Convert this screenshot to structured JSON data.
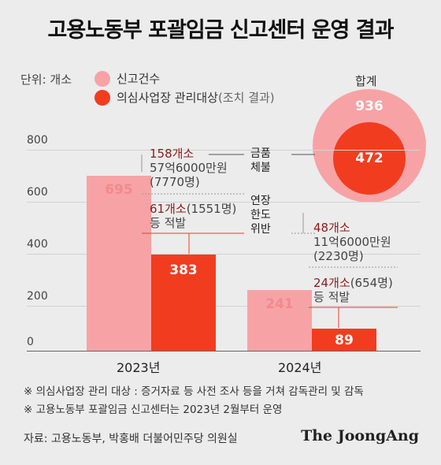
{
  "title": "고용노동부 포괄임금 신고센터 운영 결과",
  "unit": "단위: 개소",
  "legend": [
    {
      "label": "신고건수",
      "color": "#f7a3a6"
    },
    {
      "label": "의심사업장 관리대상",
      "suffix": "(조치 결과)",
      "color": "#f23c1f"
    }
  ],
  "totals": {
    "label": "합계",
    "reports": "936",
    "targets": "472"
  },
  "chart_data": {
    "type": "bar",
    "categories": [
      "2023년",
      "2024년"
    ],
    "series": [
      {
        "name": "신고건수",
        "values": [
          695,
          241
        ]
      },
      {
        "name": "의심사업장 관리대상",
        "values": [
          383,
          89
        ]
      }
    ],
    "ylim": [
      0,
      800
    ],
    "yticks": [
      "0",
      "200",
      "400",
      "600",
      "800"
    ],
    "colors": [
      "#f7a3a6",
      "#f23c1f"
    ]
  },
  "annotations": {
    "y2023": {
      "unpaid_count": "158개소",
      "unpaid_amount": "57억6000만원",
      "unpaid_people": "(7770명)",
      "overtime_count": "61개소",
      "overtime_people": "(1551명)",
      "overtime_action": "등 적발"
    },
    "y2024": {
      "unpaid_count": "48개소",
      "unpaid_amount": "11억6000만원",
      "unpaid_people": "(2230명)",
      "overtime_count": "24개소",
      "overtime_people": "(654명)",
      "overtime_action": "등 적발"
    },
    "side": {
      "unpaid_line1": "금품",
      "unpaid_line2": "체불",
      "overtime_line1": "연장",
      "overtime_line2": "한도",
      "overtime_line3": "위반"
    }
  },
  "notes": [
    "※ 의심사업장 관리 대상 : 증거자료 등 사전 조사 등을 거쳐 감독관리 및 감독",
    "※ 고용노동부 포괄임금 신고센터는 2023년 2월부터 운영"
  ],
  "source": "자료: 고용노동부, 박홍배 더불어민주당 의원실",
  "brand": "The JoongAng"
}
